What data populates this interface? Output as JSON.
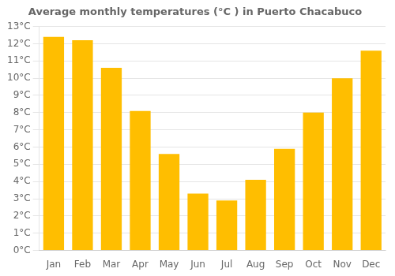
{
  "chart_data": {
    "type": "bar",
    "title": "Average monthly temperatures (°C ) in Puerto Chacabuco",
    "categories": [
      "Jan",
      "Feb",
      "Mar",
      "Apr",
      "May",
      "Jun",
      "Jul",
      "Aug",
      "Sep",
      "Oct",
      "Nov",
      "Dec"
    ],
    "values": [
      12.4,
      12.2,
      10.6,
      8.1,
      5.6,
      3.3,
      2.9,
      4.1,
      5.9,
      8.0,
      10.0,
      11.6
    ],
    "color": "#FFBE00",
    "ylim": [
      0,
      13
    ],
    "yticks": [
      {
        "value": 0,
        "label": "0°C"
      },
      {
        "value": 1,
        "label": "1°C"
      },
      {
        "value": 2,
        "label": "2°C"
      },
      {
        "value": 3,
        "label": "3°C"
      },
      {
        "value": 4,
        "label": "4°C"
      },
      {
        "value": 5,
        "label": "5°C"
      },
      {
        "value": 6,
        "label": "6°C"
      },
      {
        "value": 7,
        "label": "7°C"
      },
      {
        "value": 8,
        "label": "8°C"
      },
      {
        "value": 9,
        "label": "9°C"
      },
      {
        "value": 10,
        "label": "10°C"
      },
      {
        "value": 11,
        "label": "11°C"
      },
      {
        "value": 12,
        "label": "12°C"
      },
      {
        "value": 13,
        "label": "13°C"
      }
    ],
    "grid": true
  }
}
